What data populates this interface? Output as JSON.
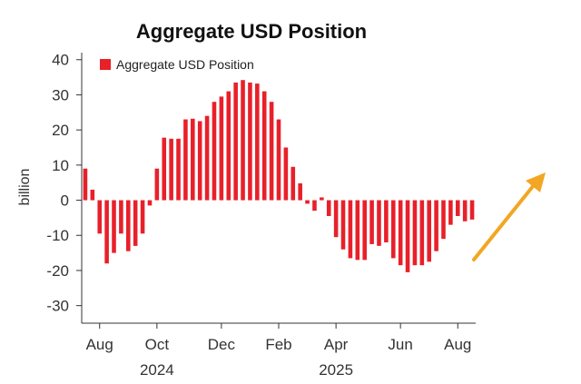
{
  "chart_data": {
    "type": "bar",
    "title": "Aggregate USD Position",
    "ylabel": "billion",
    "xlabel": "",
    "ylim": [
      -35,
      42
    ],
    "yticks": [
      40,
      30,
      20,
      10,
      0,
      -10,
      -20,
      -30
    ],
    "ytick_labels": [
      "40",
      "30",
      "20",
      "10",
      "0",
      "-10",
      "-20",
      "-30"
    ],
    "grid": false,
    "legend_position": "top-left",
    "bar_color": "#e8202a",
    "arrow_color": "#f2a623",
    "arrow_direction": "up-right",
    "x_ticks": [
      {
        "label": "Aug",
        "index": 2
      },
      {
        "label": "Oct",
        "index": 10
      },
      {
        "label": "Dec",
        "index": 19
      },
      {
        "label": "Feb",
        "index": 27
      },
      {
        "label": "Apr",
        "index": 35
      },
      {
        "label": "Jun",
        "index": 44
      },
      {
        "label": "Aug",
        "index": 52
      }
    ],
    "year_labels": [
      {
        "label": "2024",
        "index": 10
      },
      {
        "label": "2025",
        "index": 35
      }
    ],
    "series": [
      {
        "name": "Aggregate USD Position",
        "values": [
          9.0,
          3.0,
          -9.5,
          -18.0,
          -15.0,
          -9.5,
          -14.5,
          -13.0,
          -9.5,
          -1.5,
          9.0,
          17.8,
          17.5,
          17.5,
          23.0,
          23.2,
          22.5,
          24.0,
          28.0,
          29.5,
          31.0,
          33.5,
          34.2,
          33.5,
          33.2,
          31.0,
          28.0,
          23.0,
          15.0,
          9.5,
          4.8,
          -1.0,
          -3.0,
          0.8,
          -4.5,
          -10.5,
          -14.0,
          -16.5,
          -17.0,
          -17.0,
          -12.5,
          -13.0,
          -12.0,
          -16.5,
          -18.5,
          -20.5,
          -18.5,
          -18.5,
          -17.5,
          -14.5,
          -11.0,
          -7.0,
          -4.5,
          -6.0,
          -5.5
        ]
      }
    ]
  }
}
